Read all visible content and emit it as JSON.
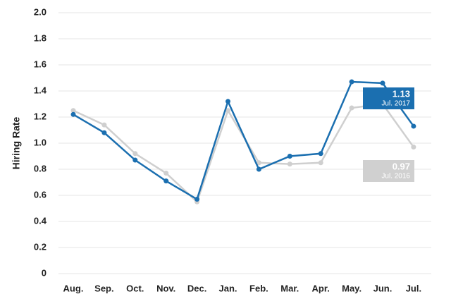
{
  "chart_data": {
    "type": "line",
    "y_label": "Hiring Rate",
    "categories": [
      "Aug.",
      "Sep.",
      "Oct.",
      "Nov.",
      "Dec.",
      "Jan.",
      "Feb.",
      "Mar.",
      "Apr.",
      "May.",
      "Jun.",
      "Jul."
    ],
    "series": [
      {
        "color": "#1b6fb0",
        "values": [
          1.22,
          1.08,
          0.87,
          0.71,
          0.57,
          1.32,
          0.8,
          0.9,
          0.92,
          1.47,
          1.46,
          1.13
        ]
      },
      {
        "color": "#cfcfcf",
        "values": [
          1.25,
          1.14,
          0.92,
          0.77,
          0.55,
          1.25,
          0.85,
          0.84,
          0.85,
          1.27,
          1.3,
          0.97
        ]
      }
    ],
    "annotations": [
      "Jul. 2017",
      "Jul. 2016"
    ],
    "ylim": [
      0,
      2
    ],
    "yticks": [
      0,
      0.2,
      0.4,
      0.6,
      0.8,
      {
        "value": 1,
        "label": "1.0"
      },
      1.2,
      1.4,
      1.6,
      1.8,
      {
        "value": 2,
        "label": "2.0"
      }
    ],
    "grid": true
  }
}
